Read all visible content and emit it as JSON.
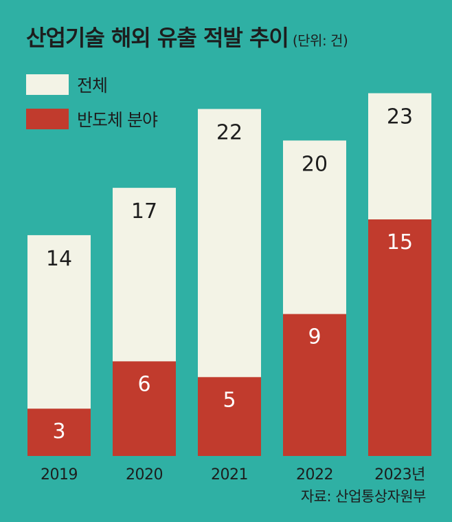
{
  "title": "산업기술 해외 유출 적발 추이",
  "unit": "(단위: 건)",
  "source": "자료: 산업통상자원부",
  "colors": {
    "background": "#2fb0a4",
    "total": "#f3f3e6",
    "semiconductor": "#c13b2d",
    "text": "#1d1d1d",
    "label_on_red": "#ffffff"
  },
  "chart_data": {
    "type": "bar",
    "stacking": "overlay",
    "categories": [
      "2019",
      "2020",
      "2021",
      "2022",
      "2023년"
    ],
    "series": [
      {
        "name": "전체",
        "values": [
          14,
          17,
          22,
          20,
          23
        ]
      },
      {
        "name": "반도체 분야",
        "values": [
          3,
          6,
          5,
          9,
          15
        ]
      }
    ],
    "ylim": [
      0,
      24.2
    ],
    "grid": false,
    "legend": "top-left"
  }
}
